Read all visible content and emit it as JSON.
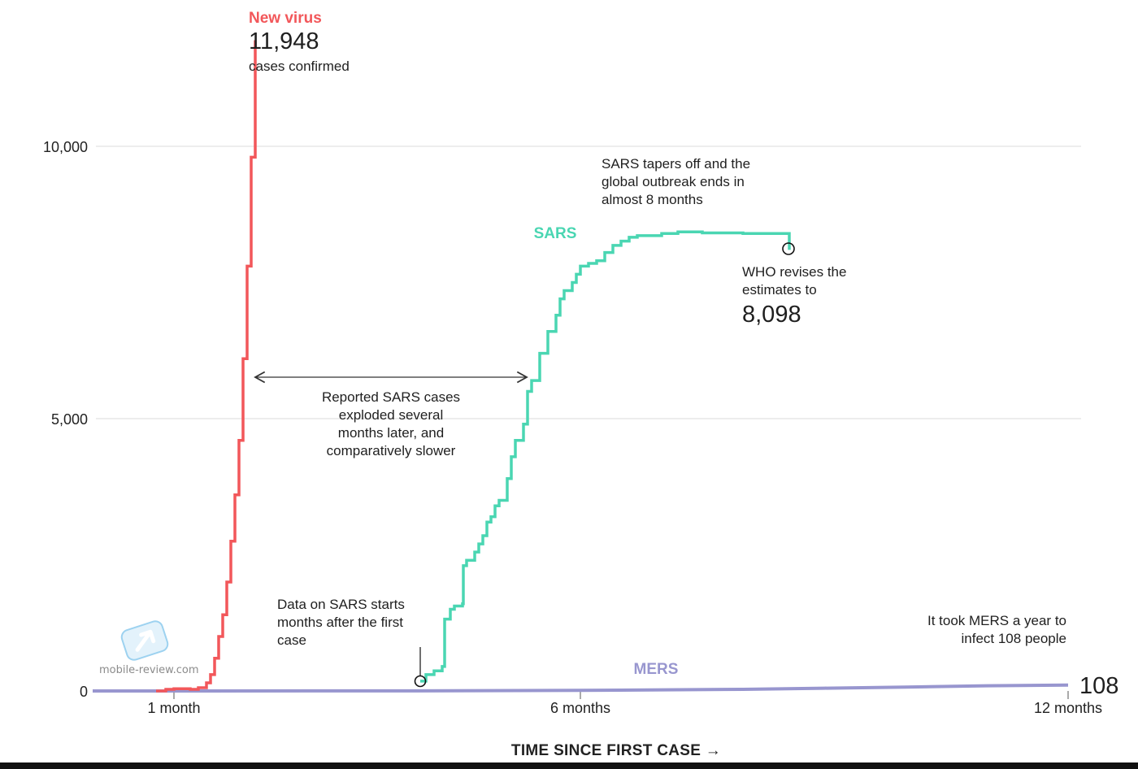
{
  "chart_data": {
    "type": "line",
    "xlabel": "TIME SINCE FIRST CASE →",
    "x_tick_labels": [
      {
        "x": 1,
        "label": "1 month"
      },
      {
        "x": 6,
        "label": "6 months"
      },
      {
        "x": 12,
        "label": "12 months"
      }
    ],
    "y_tick_labels": [
      {
        "y": 0,
        "label": "0"
      },
      {
        "y": 5000,
        "label": "5,000"
      },
      {
        "y": 10000,
        "label": "10,000"
      }
    ],
    "xlim": [
      0,
      12.2
    ],
    "ylim": [
      0,
      12500
    ],
    "grid": true,
    "series": [
      {
        "name": "New virus",
        "color": "#f2575a",
        "step": true,
        "points": [
          [
            0.78,
            0
          ],
          [
            0.9,
            30
          ],
          [
            1.0,
            40
          ],
          [
            1.2,
            30
          ],
          [
            1.3,
            60
          ],
          [
            1.4,
            150
          ],
          [
            1.45,
            300
          ],
          [
            1.5,
            600
          ],
          [
            1.55,
            1000
          ],
          [
            1.6,
            1400
          ],
          [
            1.65,
            2000
          ],
          [
            1.7,
            2750
          ],
          [
            1.75,
            3600
          ],
          [
            1.8,
            4600
          ],
          [
            1.85,
            6100
          ],
          [
            1.9,
            7800
          ],
          [
            1.95,
            9800
          ],
          [
            2.0,
            11948
          ]
        ]
      },
      {
        "name": "SARS",
        "color": "#4ad6b2",
        "step": true,
        "points": [
          [
            4.03,
            180
          ],
          [
            4.1,
            300
          ],
          [
            4.2,
            370
          ],
          [
            4.3,
            450
          ],
          [
            4.33,
            1320
          ],
          [
            4.4,
            1500
          ],
          [
            4.45,
            1560
          ],
          [
            4.55,
            1600
          ],
          [
            4.56,
            2300
          ],
          [
            4.6,
            2400
          ],
          [
            4.7,
            2550
          ],
          [
            4.75,
            2700
          ],
          [
            4.8,
            2850
          ],
          [
            4.85,
            3100
          ],
          [
            4.9,
            3200
          ],
          [
            4.95,
            3400
          ],
          [
            5.0,
            3500
          ],
          [
            5.1,
            3900
          ],
          [
            5.15,
            4300
          ],
          [
            5.2,
            4600
          ],
          [
            5.3,
            4900
          ],
          [
            5.35,
            5500
          ],
          [
            5.4,
            5700
          ],
          [
            5.5,
            6200
          ],
          [
            5.6,
            6600
          ],
          [
            5.7,
            6900
          ],
          [
            5.75,
            7200
          ],
          [
            5.8,
            7350
          ],
          [
            5.9,
            7500
          ],
          [
            5.95,
            7650
          ],
          [
            6.0,
            7800
          ],
          [
            6.1,
            7850
          ],
          [
            6.2,
            7900
          ],
          [
            6.3,
            8050
          ],
          [
            6.4,
            8180
          ],
          [
            6.5,
            8260
          ],
          [
            6.6,
            8330
          ],
          [
            6.7,
            8360
          ],
          [
            7.0,
            8400
          ],
          [
            7.2,
            8430
          ],
          [
            7.5,
            8410
          ],
          [
            8.0,
            8400
          ],
          [
            8.57,
            8400
          ],
          [
            8.57,
            8098
          ]
        ]
      },
      {
        "name": "MERS",
        "color": "#9896cf",
        "step": false,
        "points": [
          [
            0,
            0
          ],
          [
            4,
            1
          ],
          [
            6,
            10
          ],
          [
            8,
            30
          ],
          [
            9,
            50
          ],
          [
            10,
            70
          ],
          [
            11,
            95
          ],
          [
            12,
            108
          ]
        ]
      }
    ],
    "annotations": {
      "new_virus_title": "New virus",
      "new_virus_value": "11,948",
      "new_virus_sub": "cases confirmed",
      "sars_label": "SARS",
      "mers_label": "MERS",
      "mers_value": "108",
      "sars_tapers": [
        "SARS tapers off and the",
        "global outbreak ends in",
        "almost 8 months"
      ],
      "who_revises": [
        "WHO revises the",
        "estimates to"
      ],
      "who_value": "8,098",
      "reported_sars": [
        "Reported SARS cases",
        "exploded several",
        "months later, and",
        "comparatively slower"
      ],
      "data_on_sars": [
        "Data on SARS starts",
        "months after the first",
        "case"
      ],
      "mers_took": [
        "It took MERS a year to",
        "infect 108 people"
      ]
    }
  },
  "watermark": {
    "text": "mobile-review.com"
  }
}
